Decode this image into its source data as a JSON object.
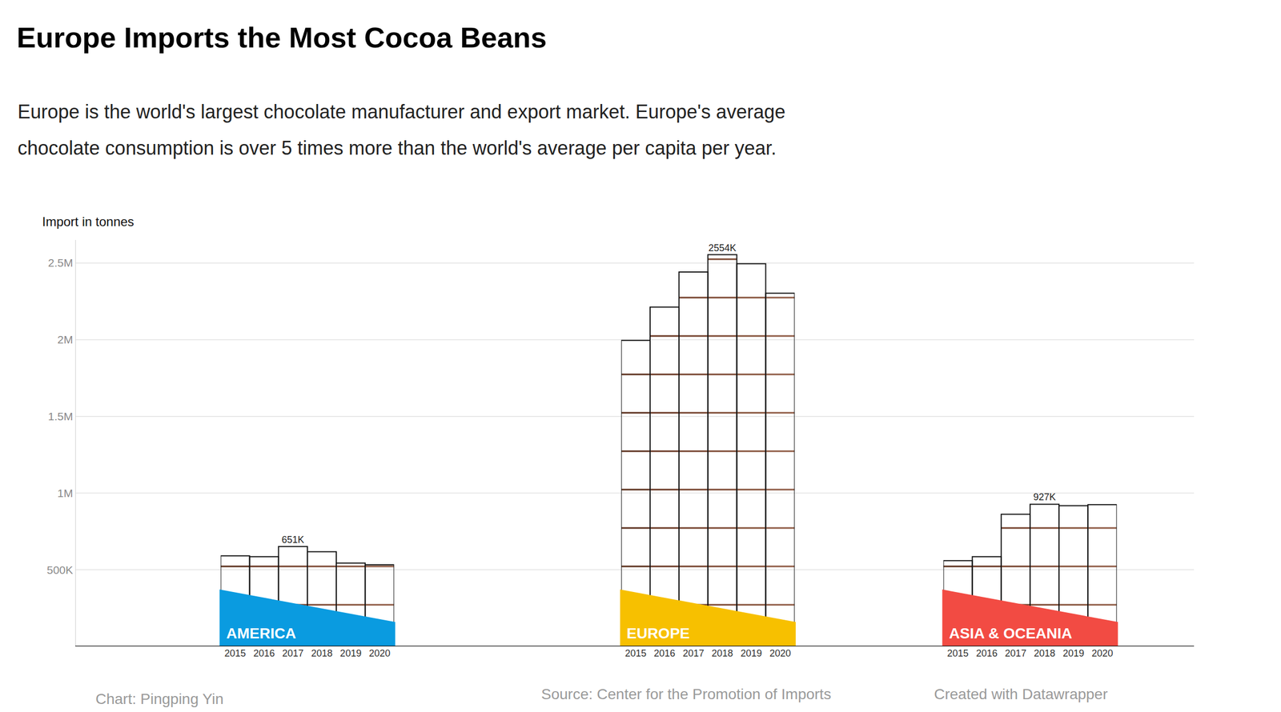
{
  "chart_data": {
    "type": "bar",
    "title": "Europe Imports the Most Cocoa Beans",
    "subtitle": [
      "Europe is the world's largest chocolate manufacturer and export market. Europe's average",
      "chocolate consumption is over 5 times more than the world's average per capita per year."
    ],
    "y_label": "Import in tonnes",
    "categories": [
      "2015",
      "2016",
      "2017",
      "2018",
      "2019",
      "2020"
    ],
    "series": [
      {
        "name": "AMERICA",
        "color": "#0a9be0",
        "values": [
          590000,
          585000,
          651000,
          617000,
          543000,
          532000
        ],
        "value_labels": [
          null,
          null,
          "651K",
          null,
          null,
          null
        ]
      },
      {
        "name": "EUROPE",
        "color": "#f7c000",
        "values": [
          1995000,
          2213000,
          2441000,
          2554000,
          2495000,
          2303000
        ],
        "value_labels": [
          null,
          null,
          null,
          "2554K",
          null,
          null
        ]
      },
      {
        "name": "ASIA & OCEANIA",
        "color": "#f24b43",
        "values": [
          559000,
          585000,
          862000,
          927000,
          917000,
          924000
        ],
        "value_labels": [
          null,
          null,
          null,
          "927K",
          null,
          null
        ]
      }
    ],
    "ylim": [
      0,
      2650000
    ],
    "yticks": [
      {
        "value": 500000,
        "label": "500K"
      },
      {
        "value": 1000000,
        "label": "1M"
      },
      {
        "value": 1500000,
        "label": "1.5M"
      },
      {
        "value": 2000000,
        "label": "2M"
      },
      {
        "value": 2500000,
        "label": "2.5M"
      }
    ],
    "grid": true,
    "data_labels": true,
    "credits": [
      "Chart: Pingping Yin",
      "Source: Center for the Promotion of Imports",
      "Created with Datawrapper"
    ]
  }
}
